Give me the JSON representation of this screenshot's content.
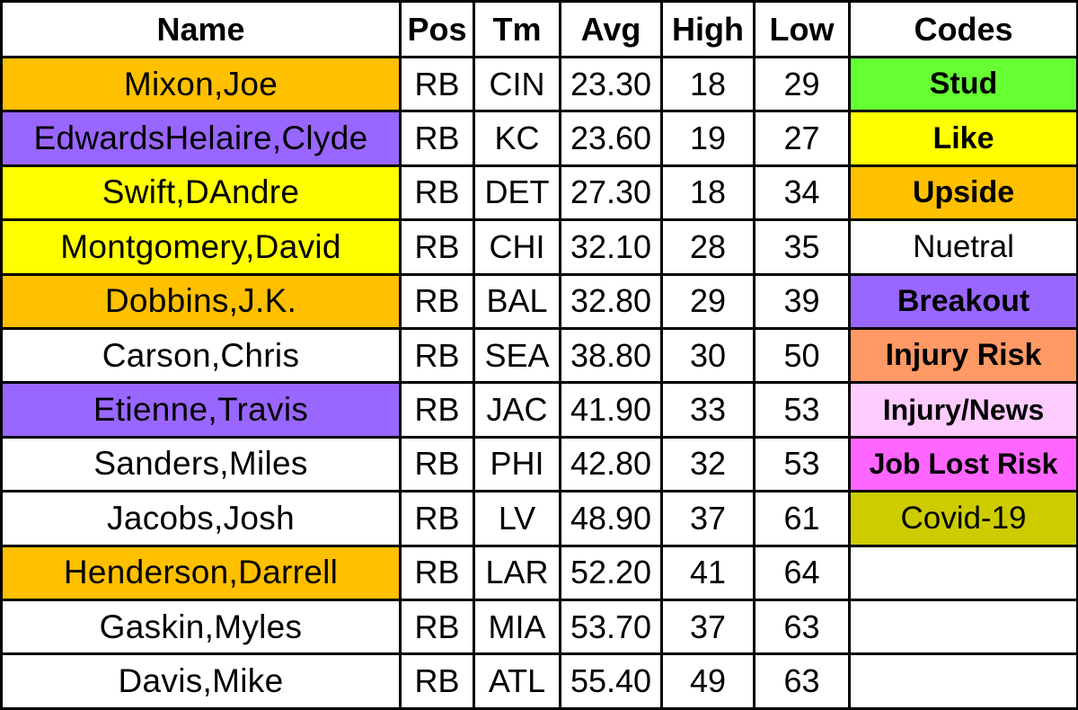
{
  "headers": {
    "name": "Name",
    "pos": "Pos",
    "tm": "Tm",
    "avg": "Avg",
    "high": "High",
    "low": "Low",
    "codes": "Codes"
  },
  "rows": [
    {
      "name": "Mixon,Joe",
      "pos": "RB",
      "tm": "CIN",
      "avg": "23.30",
      "high": "18",
      "low": "29",
      "name_color": "#FFC000",
      "code": "Stud",
      "code_color": "#66FF33",
      "code_bold": true
    },
    {
      "name": "EdwardsHelaire,Clyde",
      "pos": "RB",
      "tm": "KC",
      "avg": "23.60",
      "high": "19",
      "low": "27",
      "name_color": "#9966FF",
      "code": "Like",
      "code_color": "#FFFF00",
      "code_bold": true
    },
    {
      "name": "Swift,DAndre",
      "pos": "RB",
      "tm": "DET",
      "avg": "27.30",
      "high": "18",
      "low": "34",
      "name_color": "#FFFF00",
      "code": "Upside",
      "code_color": "#FFC000",
      "code_bold": true
    },
    {
      "name": "Montgomery,David",
      "pos": "RB",
      "tm": "CHI",
      "avg": "32.10",
      "high": "28",
      "low": "35",
      "name_color": "#FFFF00",
      "code": "Nuetral",
      "code_color": "#FFFFFF",
      "code_bold": false
    },
    {
      "name": "Dobbins,J.K.",
      "pos": "RB",
      "tm": "BAL",
      "avg": "32.80",
      "high": "29",
      "low": "39",
      "name_color": "#FFC000",
      "code": "Breakout",
      "code_color": "#9966FF",
      "code_bold": true
    },
    {
      "name": "Carson,Chris",
      "pos": "RB",
      "tm": "SEA",
      "avg": "38.80",
      "high": "30",
      "low": "50",
      "name_color": "#FFFFFF",
      "code": "Injury Risk",
      "code_color": "#FF9966",
      "code_bold": true
    },
    {
      "name": "Etienne,Travis",
      "pos": "RB",
      "tm": "JAC",
      "avg": "41.90",
      "high": "33",
      "low": "53",
      "name_color": "#9966FF",
      "code": "Injury/News",
      "code_color": "#FFCCFF",
      "code_bold": true
    },
    {
      "name": "Sanders,Miles",
      "pos": "RB",
      "tm": "PHI",
      "avg": "42.80",
      "high": "32",
      "low": "53",
      "name_color": "#FFFFFF",
      "code": "Job Lost Risk",
      "code_color": "#FF66FF",
      "code_bold": true
    },
    {
      "name": "Jacobs,Josh",
      "pos": "RB",
      "tm": "LV",
      "avg": "48.90",
      "high": "37",
      "low": "61",
      "name_color": "#FFFFFF",
      "code": "Covid-19",
      "code_color": "#CCCC00",
      "code_bold": false
    },
    {
      "name": "Henderson,Darrell",
      "pos": "RB",
      "tm": "LAR",
      "avg": "52.20",
      "high": "41",
      "low": "64",
      "name_color": "#FFC000",
      "code": "",
      "code_color": "#FFFFFF",
      "code_bold": false
    },
    {
      "name": "Gaskin,Myles",
      "pos": "RB",
      "tm": "MIA",
      "avg": "53.70",
      "high": "37",
      "low": "63",
      "name_color": "#FFFFFF",
      "code": "",
      "code_color": "#FFFFFF",
      "code_bold": false
    },
    {
      "name": "Davis,Mike",
      "pos": "RB",
      "tm": "ATL",
      "avg": "55.40",
      "high": "49",
      "low": "63",
      "name_color": "#FFFFFF",
      "code": "",
      "code_color": "#FFFFFF",
      "code_bold": false
    }
  ]
}
